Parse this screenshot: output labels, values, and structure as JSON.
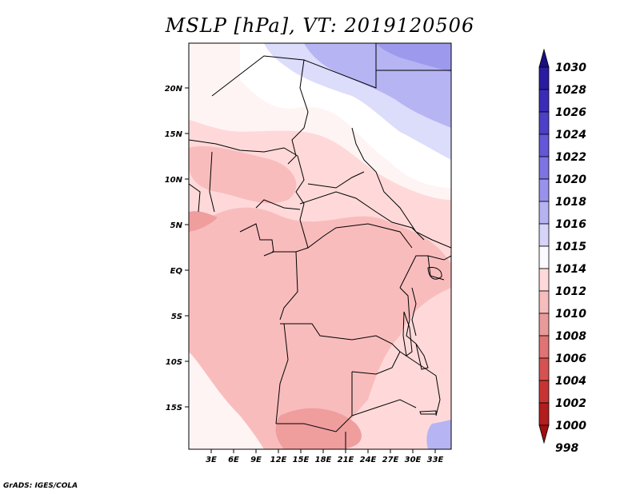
{
  "title": "MSLP [hPa], VT: 2019120506",
  "footer": "GrADS: IGES/COLA",
  "colors": {
    "p1012": "#ffd9d9",
    "p1010": "#f9bcbc",
    "p1008": "#ef9d9d",
    "p1014": "#fff4f4",
    "p1015": "#ffffff",
    "p1016": "#dcdcfb",
    "p1018": "#b6b4f3",
    "p1020": "#9d9aee",
    "border": "#000000"
  },
  "map": {
    "lat_labels": [
      "20N",
      "15N",
      "10N",
      "5N",
      "EQ",
      "5S",
      "10S",
      "15S"
    ],
    "lon_labels": [
      "3E",
      "6E",
      "9E",
      "12E",
      "15E",
      "18E",
      "21E",
      "24E",
      "27E",
      "30E",
      "33E"
    ]
  },
  "colorbar": {
    "levels": [
      "1030",
      "1028",
      "1026",
      "1024",
      "1022",
      "1020",
      "1018",
      "1016",
      "1015",
      "1014",
      "1012",
      "1010",
      "1008",
      "1006",
      "1004",
      "1002",
      "1000",
      "998"
    ],
    "colors": [
      "#1a0e86",
      "#2a1ca0",
      "#3b2cb8",
      "#4d40c8",
      "#6458d8",
      "#7d73e4",
      "#9892ec",
      "#b7b3f3",
      "#d6d4f9",
      "#fbfbff",
      "#ffd9d9",
      "#f7bcbc",
      "#e99a9a",
      "#e07373",
      "#d65252",
      "#c83434",
      "#b31d1d",
      "#a01010"
    ]
  }
}
